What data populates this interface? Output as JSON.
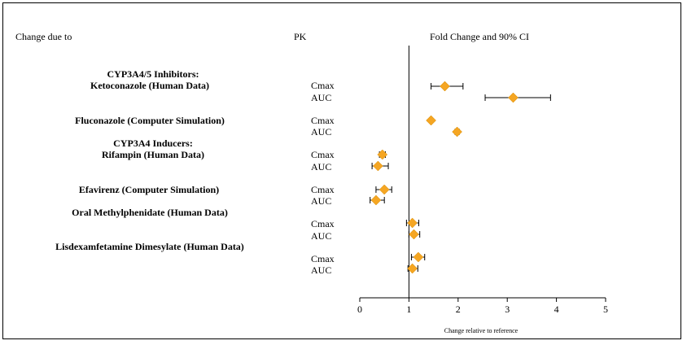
{
  "headers": {
    "change_due_to": "Change due to",
    "pk": "PK",
    "fold_change": "Fold Change and 90% CI"
  },
  "groups": [
    {
      "line1": "CYP3A4/5 Inhibitors:",
      "line2": "Ketoconazole (Human Data)"
    },
    {
      "line1": "Fluconazole (Computer Simulation)",
      "line2": ""
    },
    {
      "line1": "CYP3A4 Inducers:",
      "line2": "Rifampin  (Human Data)"
    },
    {
      "line1": "Efavirenz (Computer Simulation)",
      "line2": ""
    },
    {
      "line1": "Oral Methylphenidate (Human Data)",
      "line2": ""
    },
    {
      "line1": "Lisdexamfetamine Dimesylate (Human Data)",
      "line2": ""
    }
  ],
  "pk_labels": {
    "cmax": "Cmax",
    "auc": "AUC"
  },
  "colors": {
    "marker": "#f5a623",
    "marker_stroke": "#d68a00",
    "ci_line": "#000000",
    "reference_line": "#000000"
  },
  "chart_data": {
    "type": "forest",
    "title": "Fold Change and 90% CI",
    "xlabel": "Change relative to reference",
    "xlim": [
      0,
      5
    ],
    "xticks": [
      0,
      1,
      2,
      3,
      4,
      5
    ],
    "reference_value": 1,
    "rows": [
      {
        "group": "Ketoconazole (Human Data)",
        "pk": "Cmax",
        "estimate": 1.73,
        "ci": [
          1.45,
          2.1
        ]
      },
      {
        "group": "Ketoconazole (Human Data)",
        "pk": "AUC",
        "estimate": 3.12,
        "ci": [
          2.55,
          3.88
        ]
      },
      {
        "group": "Fluconazole (Computer Simulation)",
        "pk": "Cmax",
        "estimate": 1.45,
        "ci": [
          1.42,
          1.48
        ]
      },
      {
        "group": "Fluconazole (Computer Simulation)",
        "pk": "AUC",
        "estimate": 1.98,
        "ci": [
          1.94,
          2.02
        ]
      },
      {
        "group": "Rifampin  (Human Data)",
        "pk": "Cmax",
        "estimate": 0.46,
        "ci": [
          0.4,
          0.52
        ]
      },
      {
        "group": "Rifampin  (Human Data)",
        "pk": "AUC",
        "estimate": 0.37,
        "ci": [
          0.25,
          0.58
        ]
      },
      {
        "group": "Efavirenz (Computer Simulation)",
        "pk": "Cmax",
        "estimate": 0.5,
        "ci": [
          0.33,
          0.65
        ]
      },
      {
        "group": "Efavirenz (Computer Simulation)",
        "pk": "AUC",
        "estimate": 0.33,
        "ci": [
          0.21,
          0.5
        ]
      },
      {
        "group": "Oral Methylphenidate (Human Data)",
        "pk": "Cmax",
        "estimate": 1.07,
        "ci": [
          0.95,
          1.2
        ]
      },
      {
        "group": "Oral Methylphenidate (Human Data)",
        "pk": "AUC",
        "estimate": 1.1,
        "ci": [
          1.0,
          1.22
        ]
      },
      {
        "group": "Lisdexamfetamine Dimesylate (Human Data)",
        "pk": "Cmax",
        "estimate": 1.19,
        "ci": [
          1.05,
          1.32
        ]
      },
      {
        "group": "Lisdexamfetamine Dimesylate (Human Data)",
        "pk": "AUC",
        "estimate": 1.07,
        "ci": [
          0.98,
          1.18
        ]
      }
    ]
  }
}
